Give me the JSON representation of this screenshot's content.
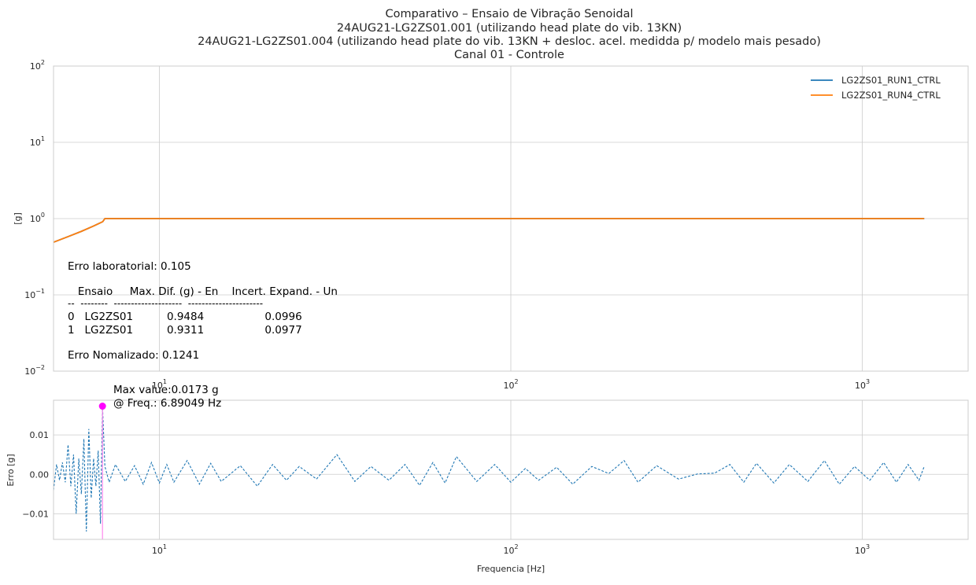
{
  "colors": {
    "run1": "#1f77b4",
    "run4": "#ff7f0e",
    "error": "#1f77b4",
    "max_marker": "#ff00ff",
    "max_line": "#ff88ee",
    "grid": "#cccccc",
    "axes_edge": "#cccccc"
  },
  "chart_data": [
    {
      "type": "line",
      "title_lines": [
        "Comparativo – Ensaio de Vibração Senoidal",
        "24AUG21-LG2ZS01.001 (utilizando head plate do vib. 13KN)",
        "24AUG21-LG2ZS01.004 (utilizando head plate do vib. 13KN + desloc. acel. medidda p/ modelo mais pesado)",
        "Canal 01 - Controle"
      ],
      "ylabel": "[g]",
      "xscale": "log",
      "yscale": "log",
      "xlim": [
        5,
        2000
      ],
      "ylim": [
        0.01,
        100
      ],
      "xticks": [
        {
          "value": 10,
          "base": "10",
          "exp": "1"
        },
        {
          "value": 100,
          "base": "10",
          "exp": "2"
        },
        {
          "value": 1000,
          "base": "10",
          "exp": "3"
        }
      ],
      "yticks": [
        {
          "value": 0.01,
          "base": "10",
          "exp": "−2"
        },
        {
          "value": 0.1,
          "base": "10",
          "exp": "−1"
        },
        {
          "value": 1,
          "base": "10",
          "exp": "0"
        },
        {
          "value": 10,
          "base": "10",
          "exp": "1"
        },
        {
          "value": 100,
          "base": "10",
          "exp": "2"
        }
      ],
      "grid": true,
      "legend_position": "top-right",
      "series": [
        {
          "name": "LG2ZS01_RUN1_CTRL",
          "x": [
            5,
            5.5,
            6,
            6.5,
            6.9,
            7,
            10,
            100,
            1000,
            1500
          ],
          "y": [
            0.49,
            0.58,
            0.68,
            0.8,
            0.91,
            1.0,
            1.0,
            1.0,
            1.0,
            1.0
          ]
        },
        {
          "name": "LG2ZS01_RUN4_CTRL",
          "x": [
            5,
            5.5,
            6,
            6.5,
            6.9,
            7,
            10,
            100,
            1000,
            1500
          ],
          "y": [
            0.49,
            0.58,
            0.68,
            0.8,
            0.91,
            1.0,
            1.0,
            1.0,
            1.0,
            1.0
          ]
        }
      ],
      "annotation": {
        "erro_lab": "Erro laboratorial: 0.105",
        "table_header": "   Ensaio     Max. Dif. (g) - En    Incert. Expand. - Un",
        "table_sep": "--  --------  --------------------  ----------------------",
        "table_rows": [
          "0   LG2ZS01          0.9484                  0.0996",
          "1   LG2ZS01          0.9311                  0.0977"
        ],
        "erro_norm": "Erro Nomalizado: 0.1241"
      }
    },
    {
      "type": "line",
      "xlabel": "Frequencia [Hz]",
      "ylabel": "Erro [g]",
      "xscale": "log",
      "xlim": [
        5,
        2000
      ],
      "ylim": [
        -0.0165,
        0.0188
      ],
      "xticks": [
        {
          "value": 10,
          "base": "10",
          "exp": "1"
        },
        {
          "value": 100,
          "base": "10",
          "exp": "2"
        },
        {
          "value": 1000,
          "base": "10",
          "exp": "3"
        }
      ],
      "yticks": [
        {
          "value": 0.01,
          "label": "0.01"
        },
        {
          "value": 0.0,
          "label": "0.00"
        },
        {
          "value": -0.01,
          "label": "−0.01"
        }
      ],
      "grid": true,
      "series": [
        {
          "name": "",
          "style": "dashed",
          "x": [
            5.0,
            5.1,
            5.2,
            5.3,
            5.4,
            5.5,
            5.6,
            5.7,
            5.8,
            5.9,
            6.0,
            6.1,
            6.2,
            6.3,
            6.4,
            6.5,
            6.6,
            6.7,
            6.8,
            6.89049,
            7.0,
            7.2,
            7.5,
            8.0,
            8.5,
            9.0,
            9.5,
            10.0,
            10.5,
            11.0,
            12.0,
            13.0,
            14.0,
            15.0,
            17.0,
            19.0,
            21.0,
            23.0,
            25.0,
            28.0,
            32.0,
            36.0,
            40.0,
            45.0,
            50.0,
            55.0,
            60.0,
            65.0,
            70.0,
            80.0,
            90.0,
            100.0,
            110.0,
            120.0,
            135.0,
            150.0,
            170.0,
            190.0,
            210.0,
            230.0,
            260.0,
            300.0,
            340.0,
            380.0,
            420.0,
            460.0,
            500.0,
            560.0,
            620.0,
            700.0,
            780.0,
            860.0,
            950.0,
            1050.0,
            1150.0,
            1250.0,
            1350.0,
            1450.0,
            1500.0
          ],
          "y": [
            -0.004,
            0.0025,
            -0.0015,
            0.003,
            -0.002,
            0.0075,
            -0.003,
            0.005,
            -0.01,
            0.004,
            -0.005,
            0.009,
            -0.0145,
            0.0115,
            -0.006,
            0.004,
            -0.003,
            0.006,
            -0.0125,
            0.0173,
            0.002,
            -0.002,
            0.0025,
            -0.0018,
            0.0022,
            -0.0025,
            0.003,
            -0.0022,
            0.0025,
            -0.002,
            0.0035,
            -0.0025,
            0.0028,
            -0.0018,
            0.0022,
            -0.003,
            0.0025,
            -0.0015,
            0.002,
            -0.0012,
            0.005,
            -0.0018,
            0.002,
            -0.0015,
            0.0025,
            -0.0028,
            0.003,
            -0.0022,
            0.0045,
            -0.0018,
            0.0025,
            -0.002,
            0.0015,
            -0.0015,
            0.0018,
            -0.0025,
            0.002,
            0.0002,
            0.0035,
            -0.002,
            0.0022,
            -0.0012,
            0.0001,
            0.0003,
            0.0025,
            -0.002,
            0.0028,
            -0.0022,
            0.0025,
            -0.0018,
            0.0035,
            -0.0025,
            0.002,
            -0.0015,
            0.003,
            -0.002,
            0.0025,
            -0.0015,
            0.002
          ]
        }
      ],
      "max_point": {
        "x": 6.89049,
        "y": 0.0173
      },
      "max_annotation": [
        "Max value:0.0173 g",
        "@ Freq.: 6.89049 Hz"
      ]
    }
  ]
}
